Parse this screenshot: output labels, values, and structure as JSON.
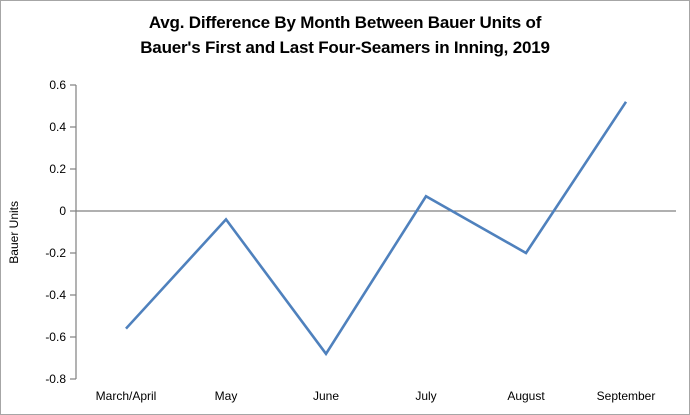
{
  "chart_data": {
    "type": "line",
    "title": "Avg. Difference By Month Between Bauer Units of Bauer's First and Last Four-Seamers in Inning, 2019",
    "title_lines": [
      "Avg. Difference By Month Between Bauer Units of",
      "Bauer's First and Last Four-Seamers in Inning, 2019"
    ],
    "xlabel": "",
    "ylabel": "Bauer Units",
    "categories": [
      "March/April",
      "May",
      "June",
      "July",
      "August",
      "September"
    ],
    "values": [
      -0.56,
      -0.04,
      -0.68,
      0.07,
      -0.2,
      0.52
    ],
    "ylim": [
      -0.8,
      0.6
    ],
    "ytick_step": 0.2,
    "ytick_labels": [
      "0.6",
      "0.4",
      "0.2",
      "0",
      "-0.2",
      "-0.4",
      "-0.6",
      "-0.8"
    ],
    "grid": "off",
    "legend": "none",
    "baseline_at_zero": true,
    "colors": {
      "line": "#4F81BD",
      "axis": "#808080",
      "border": "#A6A6A6",
      "text": "#000000"
    }
  }
}
